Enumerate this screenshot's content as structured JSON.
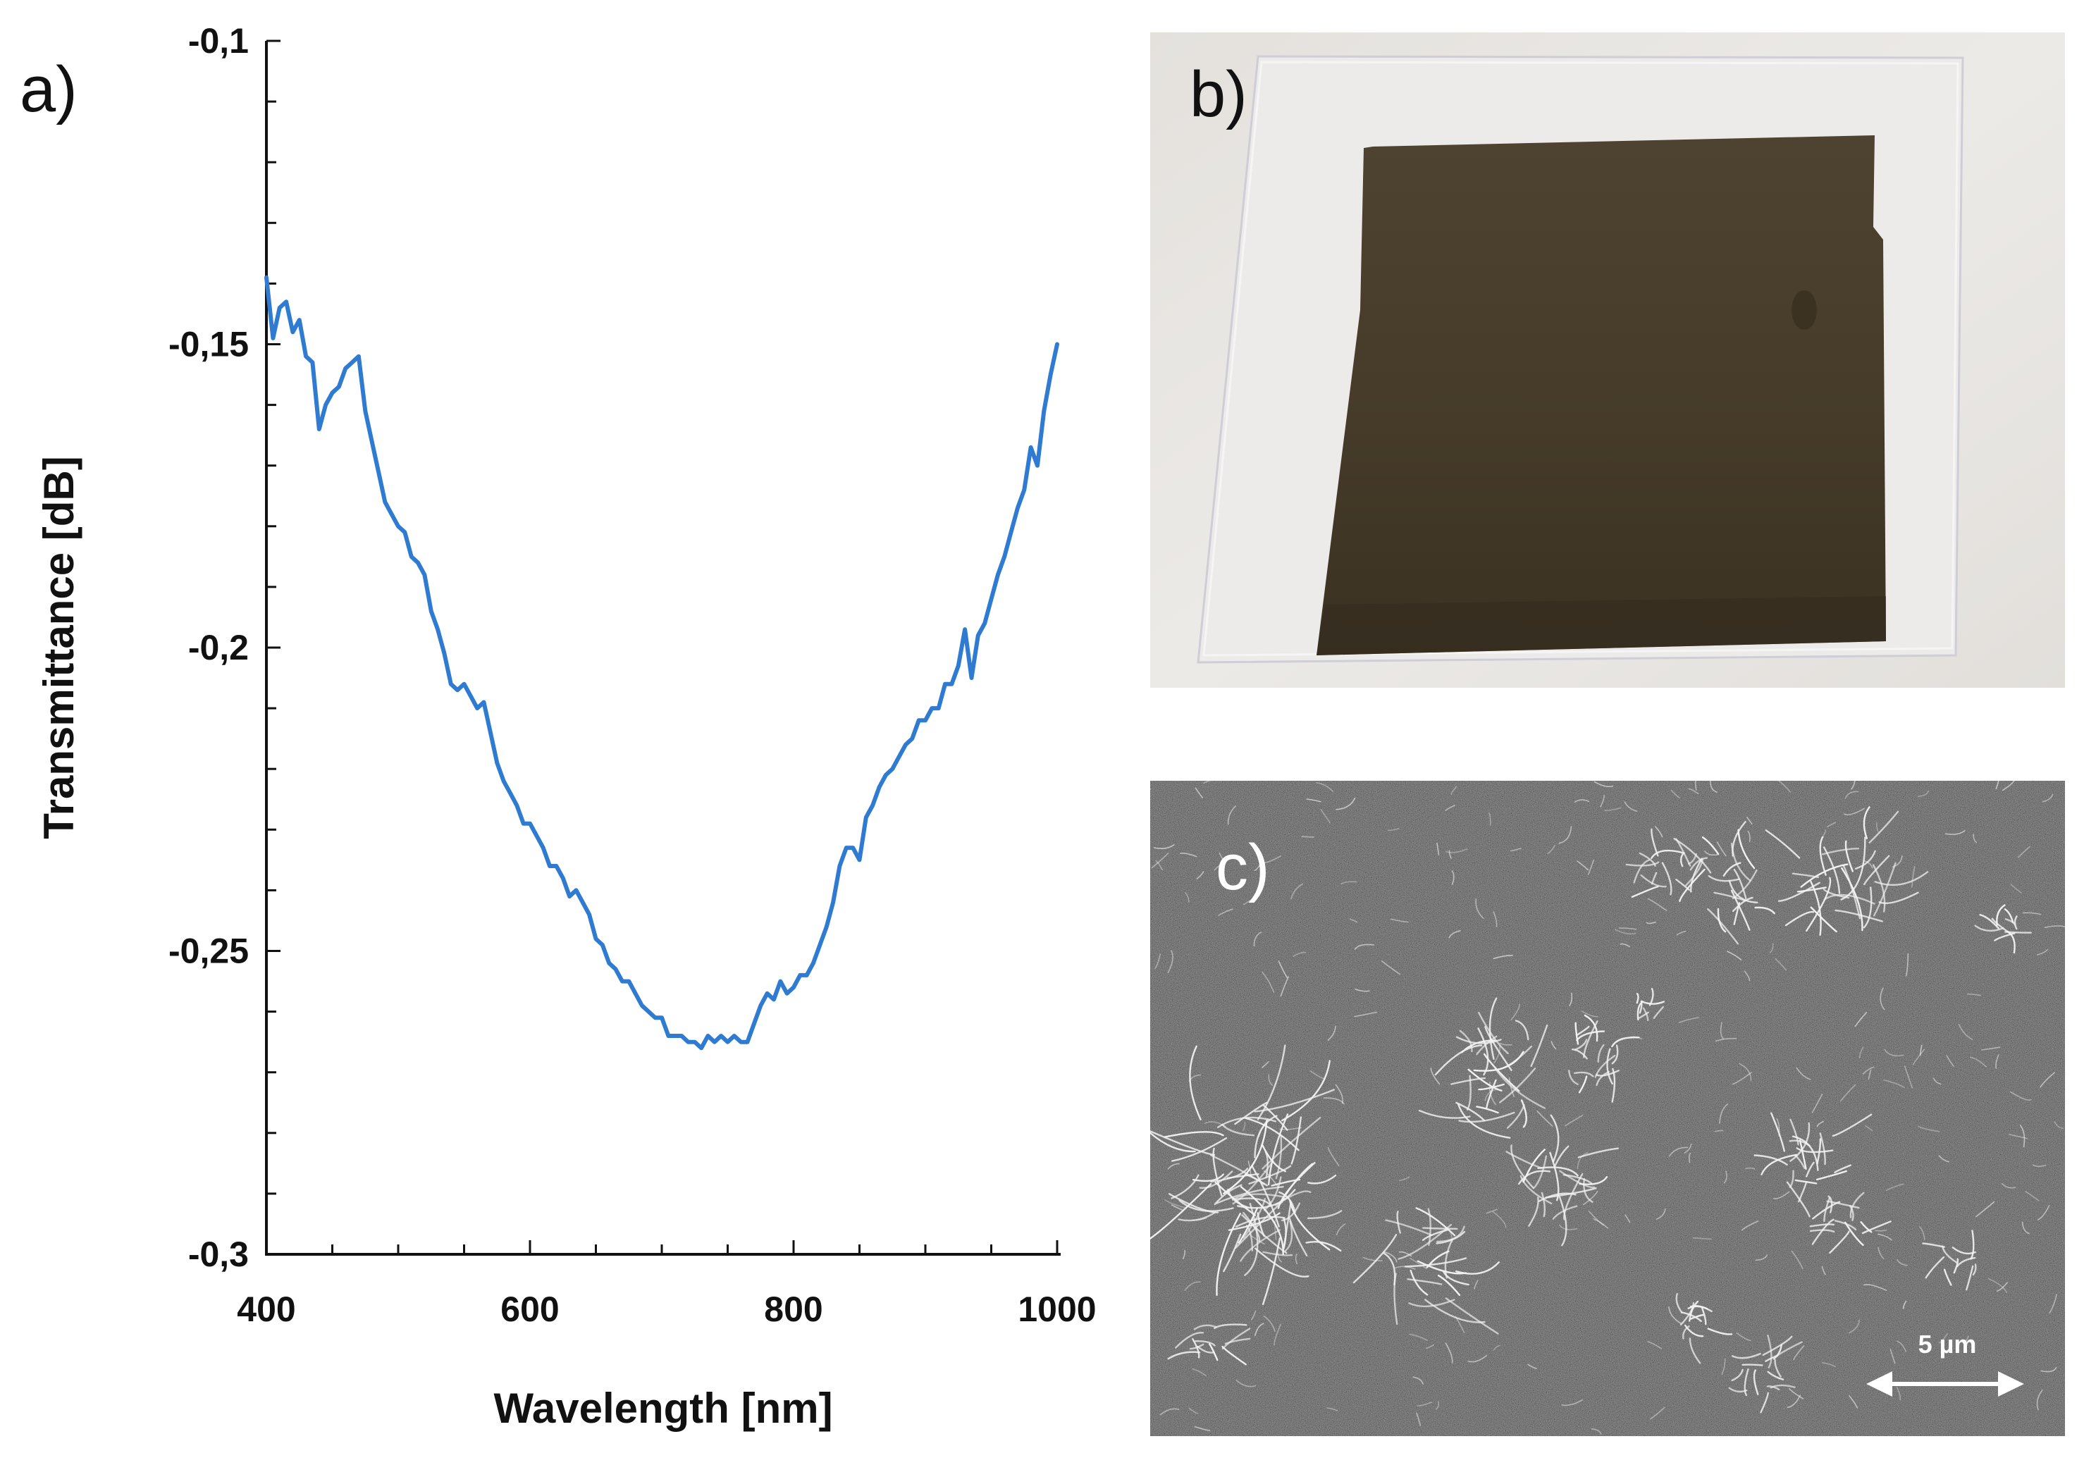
{
  "panels": {
    "a": "a)",
    "b": "b)",
    "c": "c)"
  },
  "scale_bar": {
    "label": "5 µm"
  },
  "colors": {
    "series_line": "#2e7bd1",
    "axis": "#111111",
    "film": "#4a3e2b",
    "sem_background": "#3d3d3d"
  },
  "chart_data": {
    "type": "line",
    "title": "",
    "xlabel": "Wavelength [nm]",
    "ylabel": "Transmittance [dB]",
    "xlim": [
      400,
      1000
    ],
    "ylim": [
      -0.3,
      -0.1
    ],
    "xticks": [
      400,
      600,
      800,
      1000
    ],
    "xtick_labels": [
      "400",
      "600",
      "800",
      "1000"
    ],
    "yticks": [
      -0.1,
      -0.15,
      -0.2,
      -0.25,
      -0.3
    ],
    "ytick_labels": [
      "-0,1",
      "-0,15",
      "-0,2",
      "-0,25",
      "-0,3"
    ],
    "grid": false,
    "series": [
      {
        "name": "Transmittance",
        "x": [
          400,
          405,
          410,
          415,
          420,
          425,
          430,
          435,
          440,
          445,
          450,
          455,
          460,
          465,
          470,
          475,
          480,
          485,
          490,
          495,
          500,
          505,
          510,
          515,
          520,
          525,
          530,
          535,
          540,
          545,
          550,
          555,
          560,
          565,
          570,
          575,
          580,
          585,
          590,
          595,
          600,
          605,
          610,
          615,
          620,
          625,
          630,
          635,
          640,
          645,
          650,
          655,
          660,
          665,
          670,
          675,
          680,
          685,
          690,
          695,
          700,
          705,
          710,
          715,
          720,
          725,
          730,
          735,
          740,
          745,
          750,
          755,
          760,
          765,
          770,
          775,
          780,
          785,
          790,
          795,
          800,
          805,
          810,
          815,
          820,
          825,
          830,
          835,
          840,
          845,
          850,
          855,
          860,
          865,
          870,
          875,
          880,
          885,
          890,
          895,
          900,
          905,
          910,
          915,
          920,
          925,
          930,
          935,
          940,
          945,
          950,
          955,
          960,
          965,
          970,
          975,
          980,
          985,
          990,
          995,
          1000
        ],
        "values": [
          -0.139,
          -0.149,
          -0.144,
          -0.143,
          -0.148,
          -0.146,
          -0.152,
          -0.153,
          -0.164,
          -0.16,
          -0.158,
          -0.157,
          -0.154,
          -0.153,
          -0.152,
          -0.161,
          -0.166,
          -0.171,
          -0.176,
          -0.178,
          -0.18,
          -0.181,
          -0.185,
          -0.186,
          -0.188,
          -0.194,
          -0.197,
          -0.201,
          -0.206,
          -0.207,
          -0.206,
          -0.208,
          -0.21,
          -0.209,
          -0.214,
          -0.219,
          -0.222,
          -0.224,
          -0.226,
          -0.229,
          -0.229,
          -0.231,
          -0.233,
          -0.236,
          -0.236,
          -0.238,
          -0.241,
          -0.24,
          -0.242,
          -0.244,
          -0.248,
          -0.249,
          -0.252,
          -0.253,
          -0.255,
          -0.255,
          -0.257,
          -0.259,
          -0.26,
          -0.261,
          -0.261,
          -0.264,
          -0.264,
          -0.264,
          -0.265,
          -0.265,
          -0.266,
          -0.264,
          -0.265,
          -0.264,
          -0.265,
          -0.264,
          -0.265,
          -0.265,
          -0.262,
          -0.259,
          -0.257,
          -0.258,
          -0.255,
          -0.257,
          -0.256,
          -0.254,
          -0.254,
          -0.252,
          -0.249,
          -0.246,
          -0.242,
          -0.236,
          -0.233,
          -0.233,
          -0.235,
          -0.228,
          -0.226,
          -0.223,
          -0.221,
          -0.22,
          -0.218,
          -0.216,
          -0.215,
          -0.212,
          -0.212,
          -0.21,
          -0.21,
          -0.206,
          -0.206,
          -0.203,
          -0.197,
          -0.205,
          -0.198,
          -0.196,
          -0.192,
          -0.188,
          -0.185,
          -0.181,
          -0.177,
          -0.174,
          -0.167,
          -0.17,
          -0.161,
          -0.155,
          -0.15
        ]
      }
    ]
  }
}
